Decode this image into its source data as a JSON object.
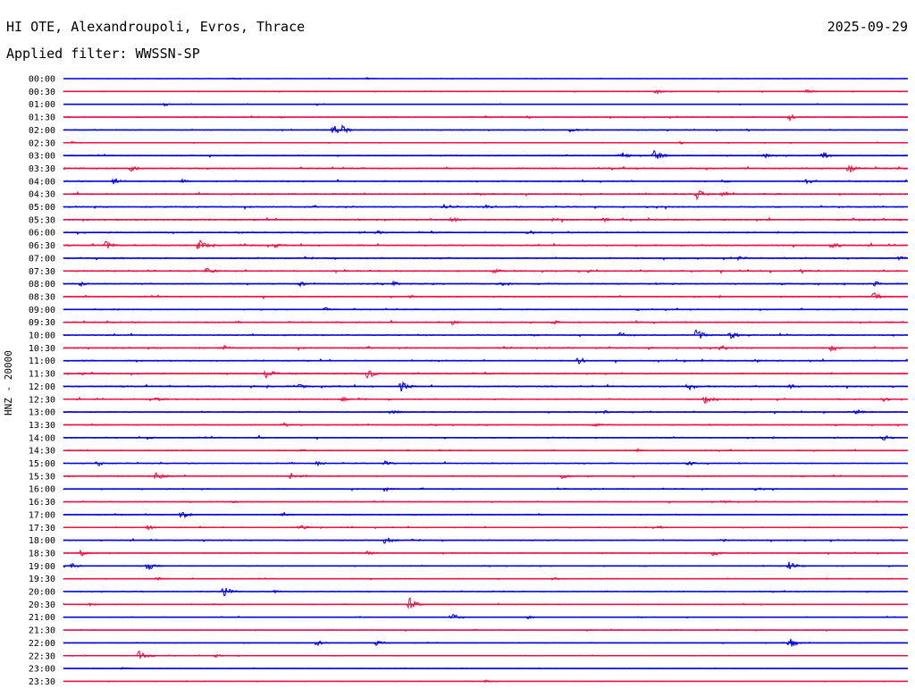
{
  "header": {
    "title": "HI OTE, Alexandroupoli, Evros, Thrace",
    "date": "2025-09-29",
    "filter": "Applied filter: WWSSN-SP"
  },
  "y_axis_label": "HNZ - 20000",
  "chart_data": {
    "type": "line",
    "description_of_series": "helicorder",
    "colors": [
      "#0000dd",
      "#ee1144"
    ],
    "categories": [
      "00:00",
      "00:30",
      "01:00",
      "01:30",
      "02:00",
      "02:30",
      "03:00",
      "03:30",
      "04:00",
      "04:30",
      "05:00",
      "05:30",
      "06:00",
      "06:30",
      "07:00",
      "07:30",
      "08:00",
      "08:30",
      "09:00",
      "09:30",
      "10:00",
      "10:30",
      "11:00",
      "11:30",
      "12:00",
      "12:30",
      "13:00",
      "13:30",
      "14:00",
      "14:30",
      "15:00",
      "15:30",
      "16:00",
      "16:30",
      "17:00",
      "17:30",
      "18:00",
      "18:30",
      "19:00",
      "19:30",
      "20:00",
      "20:30",
      "21:00",
      "21:30",
      "22:00",
      "22:30",
      "23:00",
      "23:30"
    ],
    "noise_level": [
      0.15,
      0.3,
      0.2,
      0.45,
      0.35,
      0.3,
      0.45,
      0.6,
      0.5,
      0.6,
      0.55,
      0.6,
      0.55,
      0.6,
      0.55,
      0.6,
      0.55,
      0.5,
      0.45,
      0.55,
      0.5,
      0.55,
      0.5,
      0.55,
      0.6,
      0.5,
      0.45,
      0.5,
      0.45,
      0.4,
      0.45,
      0.4,
      0.4,
      0.35,
      0.35,
      0.4,
      0.45,
      0.35,
      0.4,
      0.3,
      0.35,
      0.3,
      0.3,
      0.3,
      0.25,
      0.25,
      0.2,
      0.2
    ],
    "events": [
      [
        [
          0.2,
          1.5
        ],
        [
          0.36,
          1.2
        ]
      ],
      [
        [
          0.7,
          4
        ],
        [
          0.88,
          3
        ]
      ],
      [
        [
          0.12,
          2
        ],
        [
          0.3,
          1.6
        ]
      ],
      [
        [
          0.5,
          2
        ],
        [
          0.55,
          1.8
        ],
        [
          0.86,
          4
        ]
      ],
      [
        [
          0.32,
          6
        ],
        [
          0.33,
          5
        ],
        [
          0.6,
          3
        ]
      ],
      [
        [
          0.01,
          2
        ],
        [
          0.73,
          1.8
        ]
      ],
      [
        [
          0.66,
          5
        ],
        [
          0.7,
          7
        ],
        [
          0.83,
          4
        ],
        [
          0.9,
          5
        ]
      ],
      [
        [
          0.08,
          4
        ],
        [
          0.93,
          6
        ]
      ],
      [
        [
          0.06,
          5
        ],
        [
          0.14,
          2.5
        ],
        [
          0.78,
          3
        ],
        [
          0.88,
          4
        ]
      ],
      [
        [
          0.75,
          6
        ],
        [
          0.78,
          3
        ]
      ],
      [
        [
          0.45,
          3
        ],
        [
          0.5,
          2.5
        ]
      ],
      [
        [
          0.46,
          4
        ],
        [
          0.58,
          3
        ],
        [
          0.64,
          3
        ]
      ],
      [
        [
          0.37,
          3
        ],
        [
          0.55,
          3.5
        ]
      ],
      [
        [
          0.05,
          6
        ],
        [
          0.16,
          7
        ],
        [
          0.25,
          3
        ],
        [
          0.91,
          5
        ]
      ],
      [
        [
          0.8,
          3
        ],
        [
          0.99,
          2.5
        ]
      ],
      [
        [
          0.17,
          5
        ],
        [
          0.51,
          3
        ],
        [
          0.62,
          2
        ]
      ],
      [
        [
          0.02,
          3
        ],
        [
          0.28,
          3
        ],
        [
          0.39,
          3
        ],
        [
          0.52,
          4
        ],
        [
          0.96,
          4
        ]
      ],
      [
        [
          0.41,
          2
        ],
        [
          0.96,
          5
        ]
      ],
      [
        [
          0.31,
          3
        ],
        [
          0.68,
          2
        ]
      ],
      [
        [
          0.46,
          3
        ],
        [
          0.58,
          2.5
        ]
      ],
      [
        [
          0.66,
          4
        ],
        [
          0.75,
          8
        ],
        [
          0.79,
          5
        ]
      ],
      [
        [
          0.19,
          3
        ],
        [
          0.78,
          3
        ],
        [
          0.91,
          5
        ]
      ],
      [
        [
          0.61,
          5
        ],
        [
          0.82,
          2.5
        ]
      ],
      [
        [
          0.02,
          2
        ],
        [
          0.24,
          6
        ],
        [
          0.36,
          6
        ]
      ],
      [
        [
          0.28,
          3
        ],
        [
          0.4,
          6
        ],
        [
          0.74,
          5
        ],
        [
          0.86,
          3
        ]
      ],
      [
        [
          0.11,
          3
        ],
        [
          0.33,
          3
        ],
        [
          0.76,
          5
        ],
        [
          0.97,
          3
        ]
      ],
      [
        [
          0.39,
          3
        ],
        [
          0.64,
          2
        ],
        [
          0.94,
          3
        ]
      ],
      [
        [
          0.26,
          3
        ],
        [
          0.63,
          3
        ]
      ],
      [
        [
          0.1,
          2
        ],
        [
          0.23,
          3
        ],
        [
          0.97,
          4
        ]
      ],
      [
        [
          0.28,
          2
        ],
        [
          0.68,
          2
        ]
      ],
      [
        [
          0.04,
          4
        ],
        [
          0.3,
          3
        ],
        [
          0.38,
          3
        ],
        [
          0.74,
          3
        ]
      ],
      [
        [
          0.11,
          5
        ],
        [
          0.27,
          5
        ],
        [
          0.59,
          3
        ]
      ],
      [
        [
          0.38,
          3
        ],
        [
          0.82,
          2
        ]
      ],
      [
        [
          0.2,
          2
        ],
        [
          0.78,
          2
        ]
      ],
      [
        [
          0.14,
          5
        ],
        [
          0.26,
          3
        ]
      ],
      [
        [
          0.1,
          3
        ],
        [
          0.28,
          4
        ],
        [
          0.7,
          3
        ]
      ],
      [
        [
          0.38,
          6
        ],
        [
          0.78,
          2
        ]
      ],
      [
        [
          0.02,
          4
        ],
        [
          0.36,
          3
        ],
        [
          0.77,
          4
        ]
      ],
      [
        [
          0.01,
          3
        ],
        [
          0.1,
          5
        ],
        [
          0.86,
          6
        ]
      ],
      [
        [
          0.11,
          2
        ],
        [
          0.58,
          2
        ]
      ],
      [
        [
          0.19,
          6
        ],
        [
          0.25,
          2
        ]
      ],
      [
        [
          0.03,
          2
        ],
        [
          0.41,
          8
        ]
      ],
      [
        [
          0.46,
          5
        ],
        [
          0.55,
          2
        ]
      ],
      [
        [
          0.62,
          1.5
        ]
      ],
      [
        [
          0.3,
          4
        ],
        [
          0.37,
          4
        ],
        [
          0.86,
          6
        ]
      ],
      [
        [
          0.09,
          7
        ],
        [
          0.18,
          2
        ]
      ],
      [
        [
          0.07,
          2
        ]
      ],
      [
        [
          0.5,
          1.5
        ]
      ]
    ]
  }
}
